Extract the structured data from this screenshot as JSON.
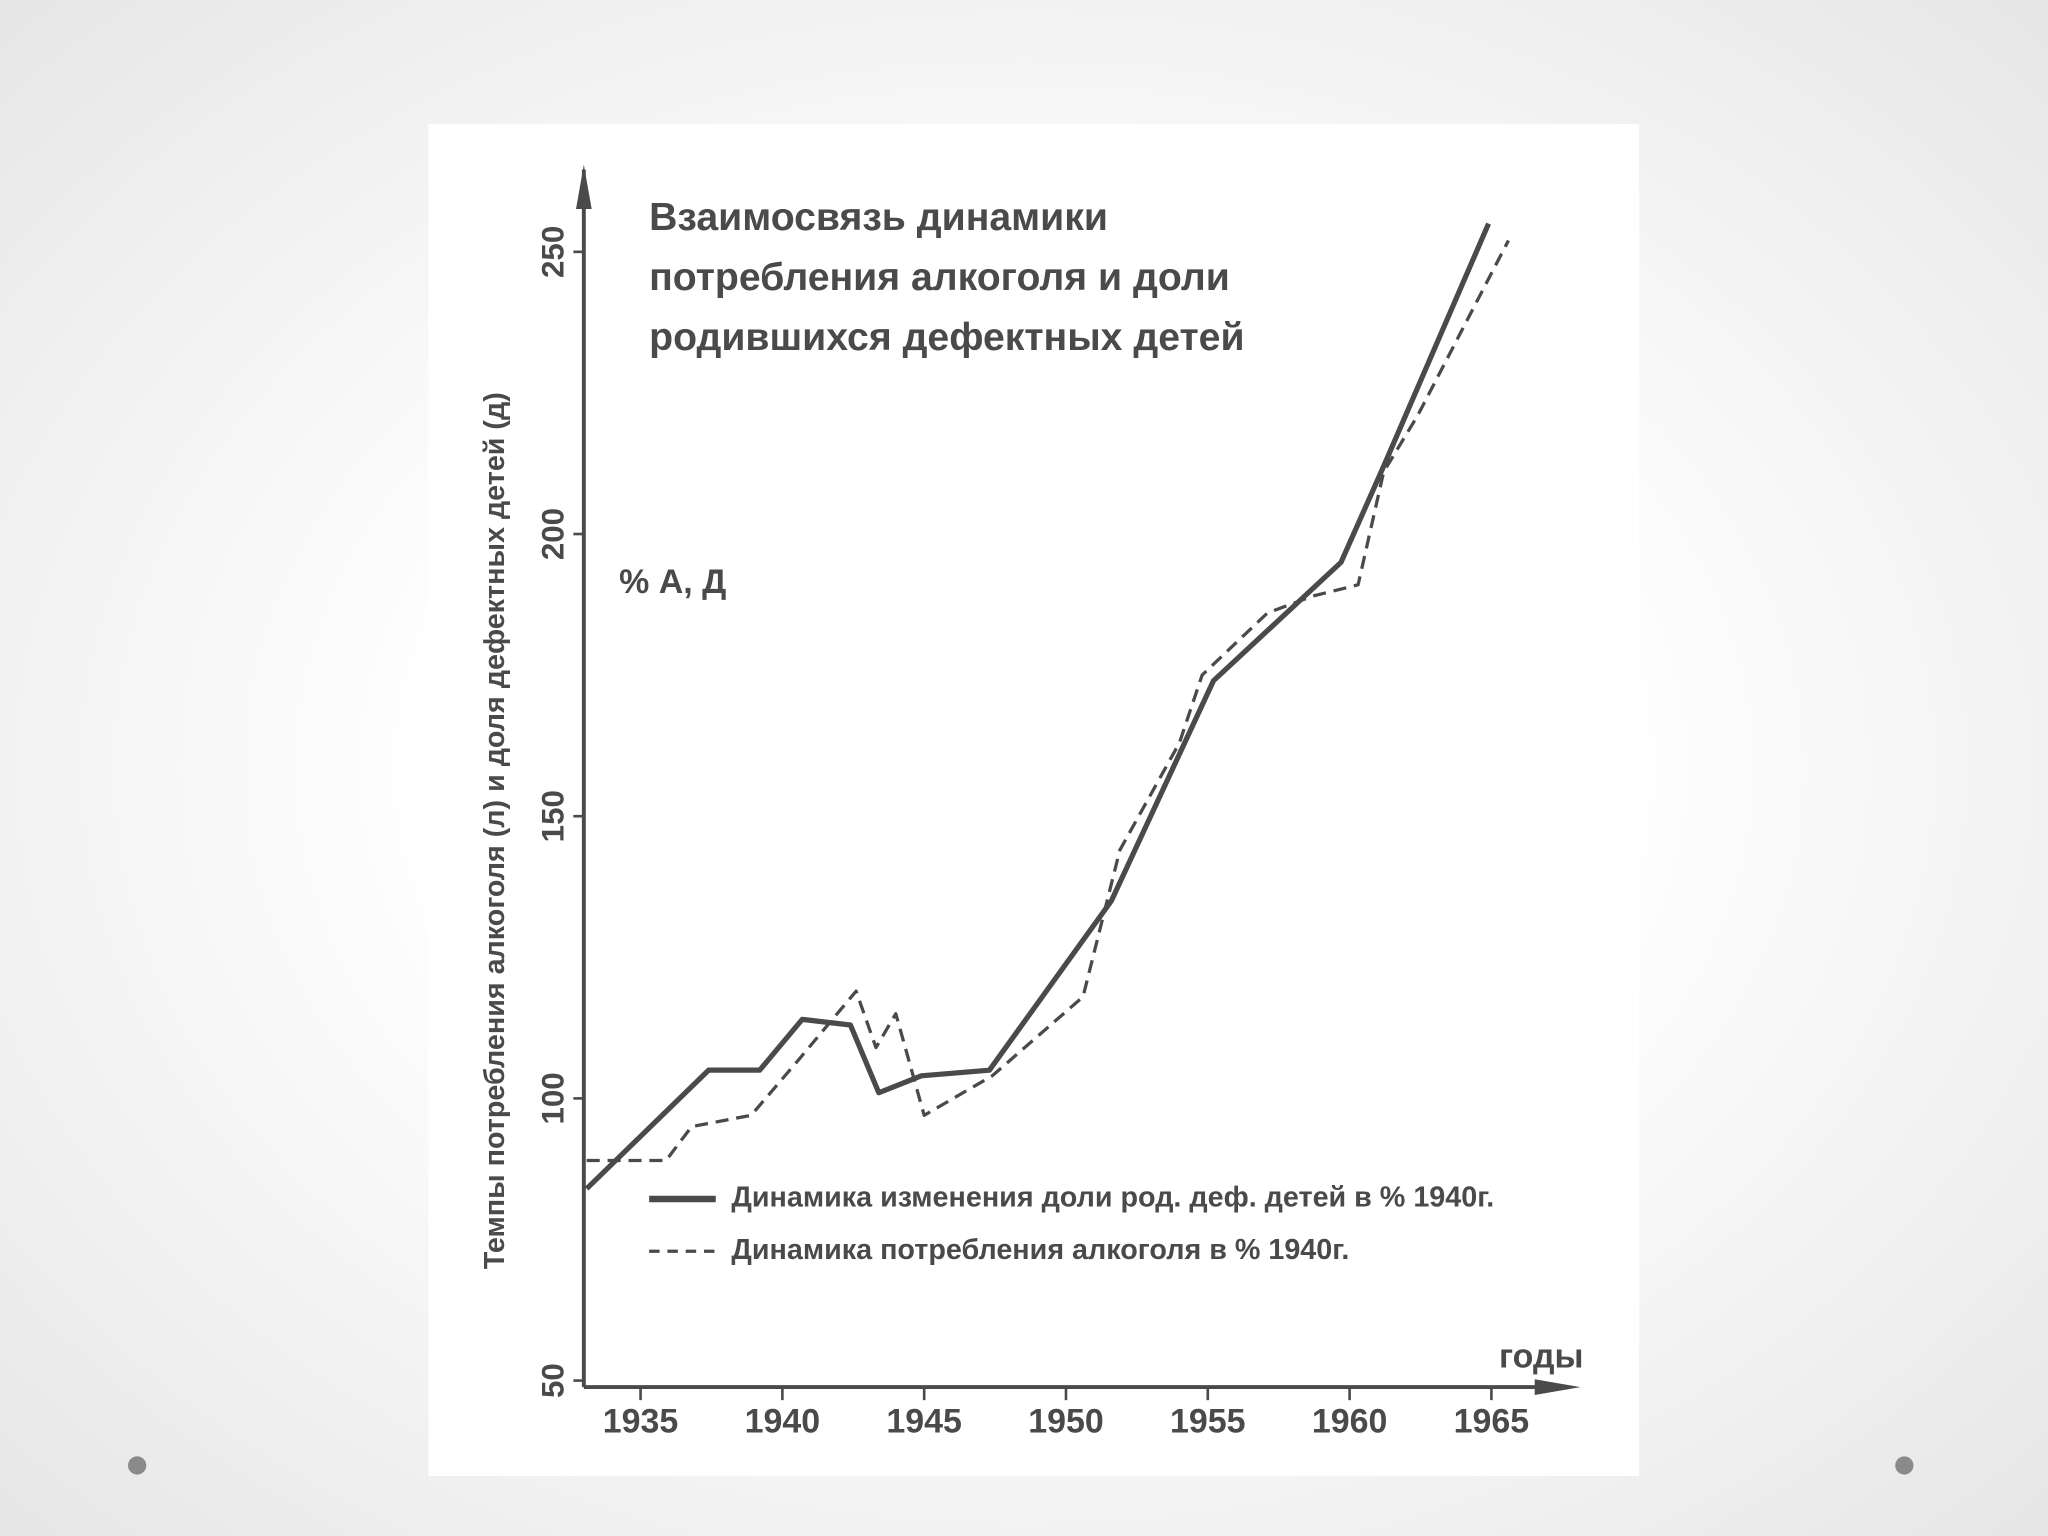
{
  "chart_data": {
    "type": "line",
    "title": [
      "Взаимосвязь динамики",
      "потребления алкоголя и доли",
      "родившихся дефектных детей"
    ],
    "y_label": "Темпы потребления алкоголя (л) и доля дефектных детей (д)",
    "unit_label": "% А, Д",
    "x_label": "годы",
    "xlim": [
      1933,
      1968
    ],
    "xticks": [
      1935,
      1940,
      1945,
      1950,
      1955,
      1960,
      1965
    ],
    "ylim": [
      50,
      265
    ],
    "yticks": [
      50,
      100,
      150,
      200,
      250
    ],
    "series": [
      {
        "name": "Динамика изменения доли род. деф. детей в % 1940г.",
        "color": "#4a4a4a",
        "style": "solid",
        "x": [
          1933.1,
          1937.4,
          1939.2,
          1940.7,
          1942.4,
          1943.4,
          1944.9,
          1947.3,
          1951.6,
          1955.2,
          1959.7,
          1961.2,
          1964.9
        ],
        "values": [
          84,
          105,
          105,
          114,
          113,
          101,
          104,
          105,
          135,
          174,
          195,
          212,
          255
        ]
      },
      {
        "name": "Динамика потребления алкоголя в % 1940г.",
        "color": "#4a4a4a",
        "style": "dashed",
        "x": [
          1933.1,
          1935.9,
          1936.8,
          1938.9,
          1940.6,
          1942.6,
          1943.3,
          1944.0,
          1945.0,
          1947.4,
          1950.6,
          1951.9,
          1954.0,
          1954.8,
          1957.1,
          1958.7,
          1960.3,
          1961.2,
          1962.4,
          1965.6
        ],
        "values": [
          89,
          89,
          95,
          97,
          107,
          119,
          109,
          115,
          97,
          104,
          118,
          144,
          163,
          175,
          186,
          189,
          191,
          211,
          221,
          252
        ]
      }
    ]
  }
}
